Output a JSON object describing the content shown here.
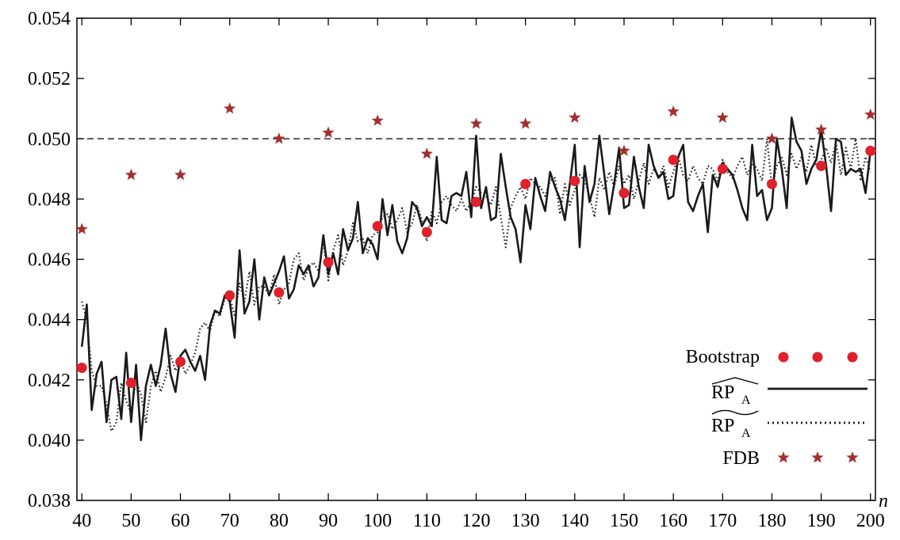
{
  "chart_data": {
    "type": "line",
    "xlabel": "n",
    "ylabel": "",
    "title": "",
    "xlim": [
      39,
      201
    ],
    "ylim": [
      0.038,
      0.054
    ],
    "x_ticks": [
      "40",
      "50",
      "60",
      "70",
      "80",
      "90",
      "100",
      "110",
      "120",
      "130",
      "140",
      "150",
      "160",
      "170",
      "180",
      "190",
      "200"
    ],
    "y_ticks": [
      "0.038",
      "0.040",
      "0.042",
      "0.044",
      "0.046",
      "0.048",
      "0.050",
      "0.052",
      "0.054"
    ],
    "reference_line": {
      "y": 0.05,
      "style": "dashed"
    },
    "legend_position": "bottom-right",
    "colors": {
      "bootstrap": "#e0202a",
      "fdb": "#a2302f",
      "lines": "#1a1a1a"
    },
    "x": [
      40,
      41,
      42,
      43,
      44,
      45,
      46,
      47,
      48,
      49,
      50,
      51,
      52,
      53,
      54,
      55,
      56,
      57,
      58,
      59,
      60,
      61,
      62,
      63,
      64,
      65,
      66,
      67,
      68,
      69,
      70,
      71,
      72,
      73,
      74,
      75,
      76,
      77,
      78,
      79,
      80,
      81,
      82,
      83,
      84,
      85,
      86,
      87,
      88,
      89,
      90,
      91,
      92,
      93,
      94,
      95,
      96,
      97,
      98,
      99,
      100,
      101,
      102,
      103,
      104,
      105,
      106,
      107,
      108,
      109,
      110,
      111,
      112,
      113,
      114,
      115,
      116,
      117,
      118,
      119,
      120,
      121,
      122,
      123,
      124,
      125,
      126,
      127,
      128,
      129,
      130,
      131,
      132,
      133,
      134,
      135,
      136,
      137,
      138,
      139,
      140,
      141,
      142,
      143,
      144,
      145,
      146,
      147,
      148,
      149,
      150,
      151,
      152,
      153,
      154,
      155,
      156,
      157,
      158,
      159,
      160,
      161,
      162,
      163,
      164,
      165,
      166,
      167,
      168,
      169,
      170,
      171,
      172,
      173,
      174,
      175,
      176,
      177,
      178,
      179,
      180,
      181,
      182,
      183,
      184,
      185,
      186,
      187,
      188,
      189,
      190,
      191,
      192,
      193,
      194,
      195,
      196,
      197,
      198,
      199,
      200
    ],
    "series": [
      {
        "name": "RP_A (hat)",
        "style": "solid",
        "values": [
          0.0431,
          0.0445,
          0.041,
          0.0422,
          0.0426,
          0.0406,
          0.042,
          0.0421,
          0.0407,
          0.0429,
          0.0406,
          0.0425,
          0.04,
          0.0418,
          0.0425,
          0.0418,
          0.0425,
          0.0437,
          0.0422,
          0.0416,
          0.0428,
          0.043,
          0.0426,
          0.0423,
          0.0428,
          0.042,
          0.0438,
          0.0443,
          0.0442,
          0.0448,
          0.0446,
          0.0434,
          0.0463,
          0.0442,
          0.0446,
          0.046,
          0.044,
          0.0454,
          0.0448,
          0.0452,
          0.0456,
          0.0461,
          0.0447,
          0.045,
          0.0458,
          0.0455,
          0.0458,
          0.0451,
          0.0454,
          0.0468,
          0.0455,
          0.0462,
          0.0455,
          0.047,
          0.0463,
          0.0467,
          0.0479,
          0.0462,
          0.0467,
          0.0465,
          0.046,
          0.048,
          0.0468,
          0.0478,
          0.0466,
          0.0462,
          0.0467,
          0.0479,
          0.0477,
          0.0471,
          0.0474,
          0.0471,
          0.0494,
          0.0473,
          0.0472,
          0.0481,
          0.0482,
          0.0481,
          0.0489,
          0.0474,
          0.0501,
          0.0477,
          0.0484,
          0.0473,
          0.0474,
          0.0495,
          0.0484,
          0.0474,
          0.047,
          0.0459,
          0.0478,
          0.047,
          0.0487,
          0.0481,
          0.0476,
          0.0489,
          0.0484,
          0.048,
          0.0473,
          0.0485,
          0.0498,
          0.0464,
          0.0491,
          0.0479,
          0.0485,
          0.0501,
          0.0488,
          0.0475,
          0.0485,
          0.0497,
          0.0477,
          0.0478,
          0.0494,
          0.0484,
          0.0477,
          0.0498,
          0.0491,
          0.0487,
          0.0489,
          0.048,
          0.0481,
          0.0494,
          0.0498,
          0.0479,
          0.0476,
          0.0481,
          0.0485,
          0.0469,
          0.0488,
          0.0484,
          0.0492,
          0.049,
          0.0488,
          0.0483,
          0.0477,
          0.0473,
          0.0498,
          0.0481,
          0.0483,
          0.0473,
          0.0477,
          0.05,
          0.049,
          0.0477,
          0.0507,
          0.0499,
          0.0496,
          0.0485,
          0.049,
          0.0493,
          0.0503,
          0.0491,
          0.0476,
          0.05,
          0.0499,
          0.0488,
          0.049,
          0.0489,
          0.049,
          0.0482,
          0.0496
        ]
      },
      {
        "name": "RP_A (tilde)",
        "style": "dotted",
        "values": [
          0.0446,
          0.044,
          0.0423,
          0.0418,
          0.0418,
          0.0412,
          0.0403,
          0.0406,
          0.0419,
          0.0413,
          0.0409,
          0.042,
          0.0415,
          0.0406,
          0.0418,
          0.0423,
          0.0416,
          0.0421,
          0.0428,
          0.0423,
          0.0427,
          0.0422,
          0.0425,
          0.0429,
          0.0437,
          0.0439,
          0.0436,
          0.0443,
          0.0441,
          0.0447,
          0.0448,
          0.0441,
          0.0452,
          0.0446,
          0.0456,
          0.0445,
          0.0451,
          0.0451,
          0.0448,
          0.0455,
          0.0445,
          0.045,
          0.0452,
          0.046,
          0.0462,
          0.0453,
          0.0457,
          0.0459,
          0.0456,
          0.0466,
          0.0453,
          0.0463,
          0.0468,
          0.0458,
          0.0463,
          0.0472,
          0.0466,
          0.0467,
          0.0462,
          0.0468,
          0.0469,
          0.0474,
          0.0475,
          0.047,
          0.0473,
          0.0477,
          0.0469,
          0.0472,
          0.0478,
          0.0473,
          0.0466,
          0.0476,
          0.0472,
          0.0479,
          0.0481,
          0.0478,
          0.0476,
          0.048,
          0.0476,
          0.0479,
          0.0484,
          0.0482,
          0.0481,
          0.0478,
          0.0484,
          0.0474,
          0.0464,
          0.0477,
          0.0481,
          0.0484,
          0.048,
          0.0487,
          0.0485,
          0.0484,
          0.0481,
          0.0486,
          0.0487,
          0.0475,
          0.0485,
          0.0478,
          0.0483,
          0.0488,
          0.0486,
          0.0481,
          0.0474,
          0.0487,
          0.0483,
          0.0489,
          0.0484,
          0.0491,
          0.0485,
          0.0488,
          0.048,
          0.0486,
          0.0492,
          0.0485,
          0.049,
          0.0487,
          0.0491,
          0.0484,
          0.0489,
          0.0494,
          0.0488,
          0.0486,
          0.0491,
          0.0487,
          0.0485,
          0.0491,
          0.049,
          0.0486,
          0.0493,
          0.0489,
          0.0487,
          0.0491,
          0.0494,
          0.0488,
          0.0492,
          0.049,
          0.0486,
          0.05,
          0.0484,
          0.0491,
          0.0494,
          0.0488,
          0.0495,
          0.049,
          0.0494,
          0.0489,
          0.0498,
          0.0491,
          0.0493,
          0.0497,
          0.0492,
          0.0499,
          0.0488,
          0.0497,
          0.049,
          0.05,
          0.0486,
          0.0494,
          0.0489
        ]
      }
    ],
    "markers": {
      "Bootstrap": {
        "x": [
          40,
          50,
          60,
          70,
          80,
          90,
          100,
          110,
          120,
          130,
          140,
          150,
          160,
          170,
          180,
          190,
          200
        ],
        "y": [
          0.0424,
          0.0419,
          0.0426,
          0.0448,
          0.0449,
          0.0459,
          0.0471,
          0.0469,
          0.0479,
          0.0485,
          0.0486,
          0.0482,
          0.0493,
          0.049,
          0.0485,
          0.0491,
          0.0496
        ]
      },
      "FDB": {
        "x": [
          40,
          50,
          60,
          70,
          80,
          90,
          100,
          110,
          120,
          130,
          140,
          150,
          160,
          170,
          180,
          190,
          200
        ],
        "y": [
          0.047,
          0.0488,
          0.0488,
          0.051,
          0.05,
          0.0502,
          0.0506,
          0.0495,
          0.0505,
          0.0505,
          0.0507,
          0.0496,
          0.0509,
          0.0507,
          0.05,
          0.0503,
          0.0508
        ]
      }
    },
    "legend": {
      "bootstrap": "Bootstrap",
      "rp_main": "RP",
      "rp_sub": "A",
      "fdb": "FDB"
    }
  }
}
